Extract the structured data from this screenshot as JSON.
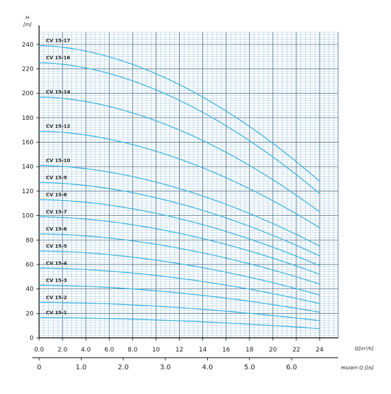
{
  "colors": {
    "curve": "#3fb6e0",
    "grid_minor": "#7aaed0",
    "grid_major": "#4a6f8c",
    "axis": "#000000",
    "background": "#ffffff"
  },
  "chart_data": {
    "type": "line",
    "title": "",
    "y_axis": {
      "label": "H",
      "unit": "[m]",
      "ylim": [
        0,
        250
      ],
      "ticks": [
        "0",
        "20",
        "40",
        "60",
        "80",
        "100",
        "120",
        "140",
        "160",
        "180",
        "200",
        "220",
        "240"
      ]
    },
    "x_axis_flow_m3h": {
      "label": "Q[m³/h]",
      "xlim": [
        0,
        24
      ],
      "ticks": [
        "0.0",
        "2.0",
        "4.0",
        "6.0",
        "8.0",
        "10",
        "12",
        "14",
        "16",
        "18",
        "20",
        "22",
        "24"
      ]
    },
    "x_axis_flow_ls": {
      "label": "Hozam Q [l/s]",
      "ticks": [
        "0",
        "1.0",
        "2.0",
        "3.0",
        "4.0",
        "5.0",
        "6.0"
      ],
      "tick_values_m3h": [
        0,
        3.6,
        7.2,
        10.8,
        14.4,
        18,
        21.6
      ]
    },
    "grid": true,
    "legend": "none",
    "series": [
      {
        "name": "CV 15-1",
        "h0": 16.5,
        "h24": 7.5
      },
      {
        "name": "CV 15-2",
        "h0": 29,
        "h24": 14
      },
      {
        "name": "CV 15-3",
        "h0": 43,
        "h24": 21
      },
      {
        "name": "CV 15-4",
        "h0": 57,
        "h24": 28
      },
      {
        "name": "CV 15-5",
        "h0": 71,
        "h24": 35
      },
      {
        "name": "CV 15-6",
        "h0": 85,
        "h24": 44
      },
      {
        "name": "CV 15-7",
        "h0": 99,
        "h24": 52
      },
      {
        "name": "CV 15-8",
        "h0": 113,
        "h24": 59
      },
      {
        "name": "CV 15-9",
        "h0": 127,
        "h24": 67
      },
      {
        "name": "CV 15-10",
        "h0": 141,
        "h24": 75
      },
      {
        "name": "CV 15-12",
        "h0": 169,
        "h24": 90
      },
      {
        "name": "CV 15-14",
        "h0": 197,
        "h24": 103
      },
      {
        "name": "CV 15-16",
        "h0": 225,
        "h24": 118
      },
      {
        "name": "CV 15-17",
        "h0": 239,
        "h24": 128
      }
    ]
  }
}
